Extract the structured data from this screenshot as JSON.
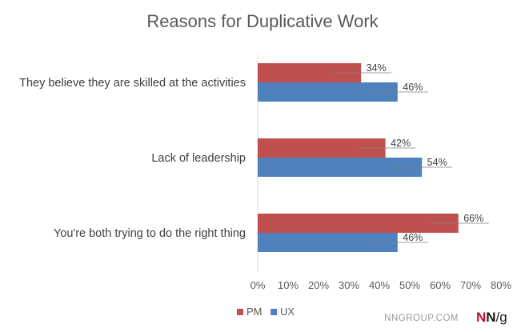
{
  "chart_data": {
    "type": "bar",
    "orientation": "horizontal",
    "title": "Reasons for Duplicative Work",
    "categories": [
      "They believe they are skilled at the activities",
      "Lack of leadership",
      "You're both trying to do the right thing"
    ],
    "series": [
      {
        "name": "PM",
        "color": "#c0504d",
        "values": [
          34,
          42,
          66
        ],
        "labels": [
          "34%",
          "42%",
          "66%"
        ]
      },
      {
        "name": "UX",
        "color": "#4f81bd",
        "values": [
          46,
          54,
          46
        ],
        "labels": [
          "46%",
          "54%",
          "46%"
        ]
      }
    ],
    "xlim": [
      0,
      80
    ],
    "x_ticks": [
      0,
      10,
      20,
      30,
      40,
      50,
      60,
      70,
      80
    ],
    "x_tick_labels": [
      "0%",
      "10%",
      "20%",
      "30%",
      "40%",
      "50%",
      "60%",
      "70%",
      "80%"
    ],
    "legend_position": "bottom",
    "grid": false
  },
  "branding": {
    "site": "NNGROUP.COM",
    "logo_n1": "N",
    "logo_n2": "N",
    "logo_g": "/g",
    "logo_colors": {
      "n1": "#c8102e",
      "n2": "#1a1a1a",
      "g": "#1a1a1a"
    }
  }
}
